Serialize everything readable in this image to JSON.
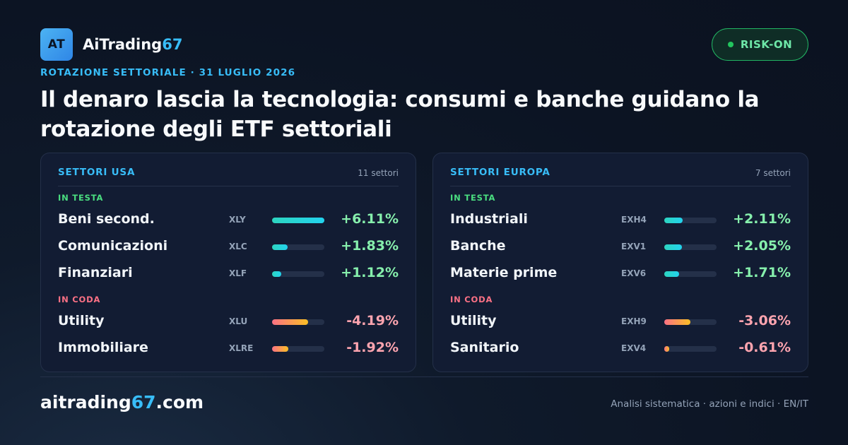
{
  "brand": {
    "logo_text": "AT",
    "name_main": "AiTrading",
    "name_accent": "67"
  },
  "badge": {
    "label": "RISK-ON",
    "color": "#22c55e"
  },
  "kicker": "ROTAZIONE SETTORIALE · 31 LUGLIO 2026",
  "headline": "Il denaro lascia la tecnologia: consumi e banche guidano la rotazione degli ETF settoriali",
  "cards": [
    {
      "title": "SETTORI USA",
      "count": "11 settori",
      "top_label": "IN TESTA",
      "bottom_label": "IN CODA",
      "leaders": [
        {
          "name": "Beni second.",
          "ticker": "XLY",
          "change": "+6.11%",
          "bar": 1.0
        },
        {
          "name": "Comunicazioni",
          "ticker": "XLC",
          "change": "+1.83%",
          "bar": 0.3
        },
        {
          "name": "Finanziari",
          "ticker": "XLF",
          "change": "+1.12%",
          "bar": 0.18
        }
      ],
      "laggards": [
        {
          "name": "Utility",
          "ticker": "XLU",
          "change": "-4.19%",
          "bar": 0.69
        },
        {
          "name": "Immobiliare",
          "ticker": "XLRE",
          "change": "-1.92%",
          "bar": 0.31
        }
      ]
    },
    {
      "title": "SETTORI EUROPA",
      "count": "7 settori",
      "top_label": "IN TESTA",
      "bottom_label": "IN CODA",
      "leaders": [
        {
          "name": "Industriali",
          "ticker": "EXH4",
          "change": "+2.11%",
          "bar": 0.35
        },
        {
          "name": "Banche",
          "ticker": "EXV1",
          "change": "+2.05%",
          "bar": 0.34
        },
        {
          "name": "Materie prime",
          "ticker": "EXV6",
          "change": "+1.71%",
          "bar": 0.28
        }
      ],
      "laggards": [
        {
          "name": "Utility",
          "ticker": "EXH9",
          "change": "-3.06%",
          "bar": 0.5
        },
        {
          "name": "Sanitario",
          "ticker": "EXV4",
          "change": "-0.61%",
          "bar": 0.1
        }
      ]
    }
  ],
  "footer": {
    "site_main": "aitrading",
    "site_accent": "67",
    "site_tld": ".com",
    "tagline": "Analisi sistematica · azioni e indici · EN/IT"
  },
  "colors": {
    "accent": "#38bdf8",
    "positive": "#86efac",
    "negative": "#fda4af"
  }
}
